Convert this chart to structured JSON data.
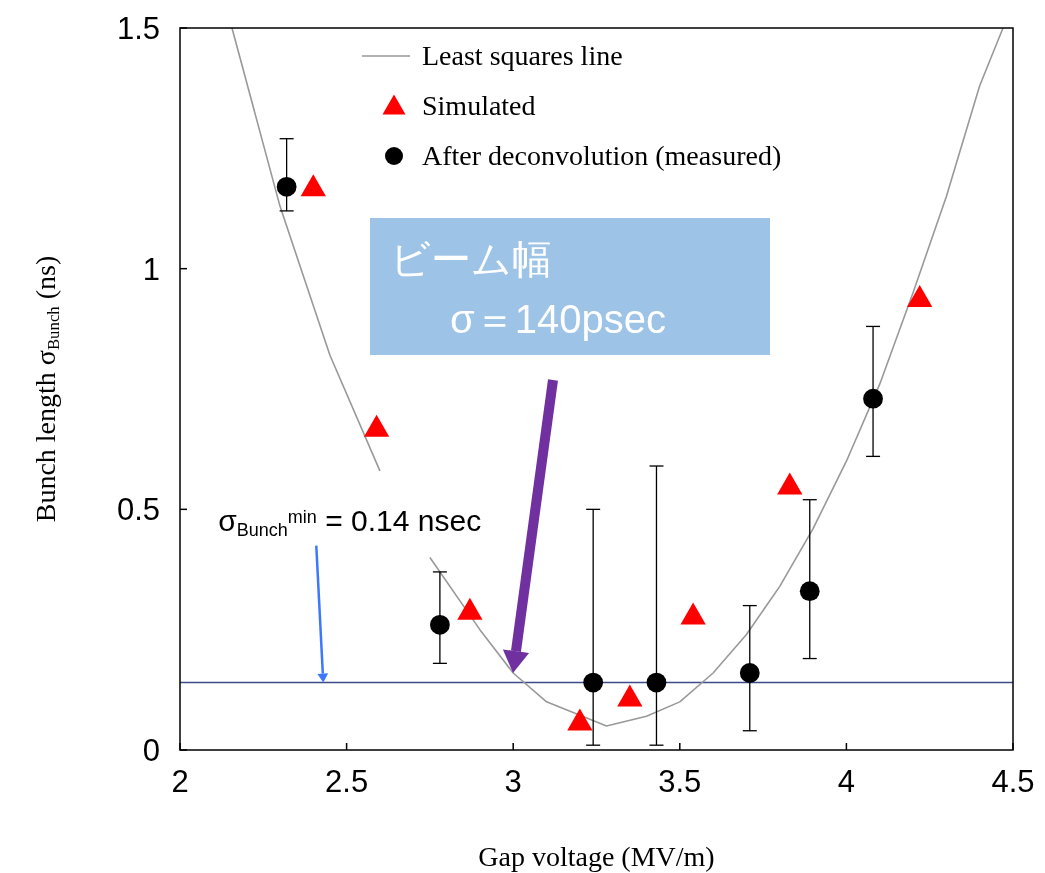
{
  "chart_data": {
    "type": "scatter",
    "xlabel": "Gap voltage (MV/m)",
    "ylabel": "Bunch length  σ$_{Bunch}$ (ns)",
    "xlim": [
      2,
      4.5
    ],
    "xticks": [
      2,
      2.5,
      3,
      3.5,
      4,
      4.5
    ],
    "ylim": [
      0,
      1.5
    ],
    "yticks": [
      0,
      0.5,
      1,
      1.5
    ],
    "grid": false,
    "legend": "top",
    "series": [
      {
        "name": "Least squares line",
        "type": "line",
        "color": "#999999",
        "marker": "none",
        "x": [
          2.156,
          2.3,
          2.45,
          2.6,
          null,
          2.75,
          2.9,
          3.0,
          3.1,
          3.28,
          3.4,
          3.5,
          3.6,
          3.7,
          3.8,
          3.9,
          4.0,
          4.1,
          4.2,
          4.3,
          4.4,
          4.47
        ],
        "values": [
          1.5,
          1.13,
          0.82,
          0.58,
          null,
          0.4,
          0.25,
          0.16,
          0.1,
          0.05,
          0.07,
          0.1,
          0.16,
          0.24,
          0.34,
          0.46,
          0.6,
          0.76,
          0.95,
          1.15,
          1.38,
          1.5
        ]
      },
      {
        "name": "Simulated",
        "color": "#ff0000",
        "marker": "triangle",
        "x": [
          2.4,
          2.59,
          2.87,
          3.2,
          3.35,
          3.54,
          3.83,
          4.22
        ],
        "values": [
          1.17,
          0.67,
          0.29,
          0.06,
          0.11,
          0.28,
          0.55,
          0.94
        ]
      },
      {
        "name": "After deconvolution (measured)",
        "color": "#000000",
        "marker": "circle",
        "x": [
          2.32,
          2.78,
          3.24,
          3.43,
          3.71,
          3.89,
          4.08
        ],
        "values": [
          1.17,
          0.26,
          0.14,
          0.14,
          0.16,
          0.33,
          0.73
        ],
        "errors": [
          [
            1.12,
            1.27
          ],
          [
            0.18,
            0.37
          ],
          [
            0.01,
            0.5
          ],
          [
            0.01,
            0.59
          ],
          [
            0.04,
            0.3
          ],
          [
            0.19,
            0.52
          ],
          [
            0.61,
            0.88
          ]
        ]
      }
    ],
    "ref_lines": [
      {
        "axis": "y",
        "value": 0.14,
        "color": "#3b4a8a"
      }
    ],
    "annotations": [
      {
        "text": "σ$_{Bunch}$$^{min}$ = 0.14 nsec",
        "x": 2.43,
        "y": 0.14
      },
      "ビーム幅\nσ＝140psec"
    ]
  }
}
